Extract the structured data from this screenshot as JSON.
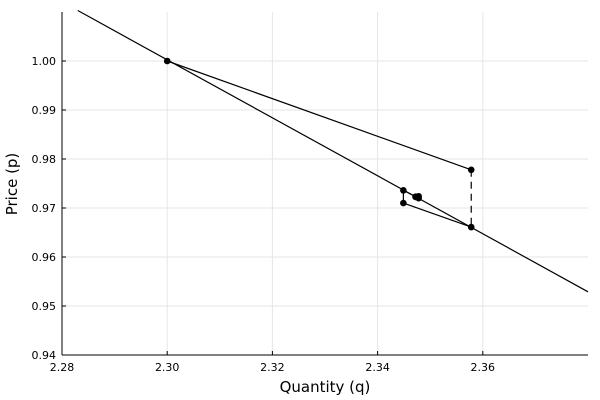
{
  "chart_data": {
    "type": "line",
    "xlabel": "Quantity (q)",
    "ylabel": "Price (p)",
    "xlim": [
      2.28,
      2.38
    ],
    "ylim": [
      0.94,
      1.01
    ],
    "xticks": [
      2.28,
      2.3,
      2.32,
      2.34,
      2.36
    ],
    "xtick_labels": [
      "2.28",
      "2.30",
      "2.32",
      "2.34",
      "2.36"
    ],
    "yticks": [
      0.94,
      0.95,
      0.96,
      0.97,
      0.98,
      0.99,
      1.0
    ],
    "ytick_labels": [
      "0.94",
      "0.95",
      "0.96",
      "0.97",
      "0.98",
      "0.99",
      "1.00"
    ],
    "grid": true,
    "legend": "none",
    "series": [
      {
        "style": "solid",
        "x": [
          2.283,
          2.38
        ],
        "y": [
          1.0103,
          0.9529
        ]
      },
      {
        "style": "solid",
        "markers": true,
        "x": [
          2.3,
          2.3578,
          2.3578,
          2.3449,
          2.3449,
          2.3478,
          2.3478,
          2.3472,
          2.3474,
          2.3476
        ],
        "y": [
          1.0,
          0.9778,
          0.9661,
          0.971,
          0.9736,
          0.972,
          0.9724,
          0.9723,
          0.9722,
          0.9723
        ],
        "dashed_segments": [
          1
        ]
      }
    ]
  }
}
